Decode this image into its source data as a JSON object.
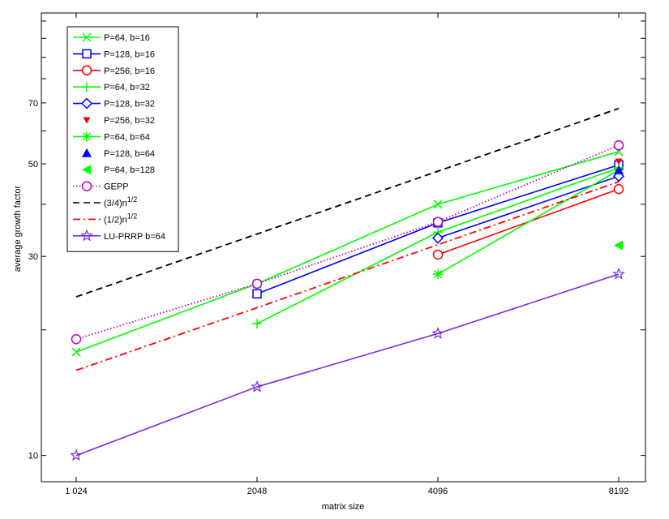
{
  "chart_data": {
    "type": "line",
    "title": "",
    "xlabel": "matrix size",
    "ylabel": "average growth factor",
    "x_scale": "log2",
    "y_scale": "log",
    "xlim": [
      1024,
      8192
    ],
    "ylim": [
      8.65,
      115
    ],
    "x_ticks": [
      1024,
      2048,
      4096,
      8192
    ],
    "x_tick_labels": [
      "1 024",
      "2048",
      "4096",
      "8192"
    ],
    "y_ticks": [
      10,
      30,
      50,
      70
    ],
    "y_tick_labels": [
      "10",
      "30",
      "50",
      "70"
    ],
    "y_minor_ticks": [
      20,
      40,
      60,
      80,
      90,
      100,
      110
    ],
    "grid": false,
    "legend_position": "top-left",
    "series": [
      {
        "name": "P=64, b=16",
        "color": "#00ff00",
        "marker": "x",
        "line": "solid",
        "x": [
          1024,
          2048,
          4096,
          8192
        ],
        "y": [
          17.7,
          25.8,
          40.0,
          53.5
        ]
      },
      {
        "name": "P=128, b=16",
        "color": "#0000ff",
        "marker": "square",
        "line": "solid",
        "x": [
          2048,
          4096,
          8192
        ],
        "y": [
          24.4,
          36.1,
          49.7
        ]
      },
      {
        "name": "P=256, b=16",
        "color": "#ff0000",
        "marker": "circle",
        "line": "solid",
        "x": [
          4096,
          8192
        ],
        "y": [
          30.3,
          43.5
        ]
      },
      {
        "name": "P=64, b=32",
        "color": "#00ff00",
        "marker": "plus",
        "line": "solid",
        "x": [
          2048,
          4096,
          8192
        ],
        "y": [
          20.7,
          34.3,
          48.9
        ]
      },
      {
        "name": "P=128, b=32",
        "color": "#0000ff",
        "marker": "diamond",
        "line": "solid",
        "x": [
          4096,
          8192
        ],
        "y": [
          33.2,
          46.7
        ]
      },
      {
        "name": "P=256, b=32",
        "color": "#ff0000",
        "marker": "triangle-down",
        "line": "none",
        "x": [
          8192
        ],
        "y": [
          50.7
        ]
      },
      {
        "name": "P=64, b=64",
        "color": "#00ff00",
        "marker": "asterisk",
        "line": "solid",
        "x": [
          4096,
          8192
        ],
        "y": [
          27.2,
          48.3
        ]
      },
      {
        "name": "P=128, b=64",
        "color": "#0000ff",
        "marker": "triangle-up",
        "line": "none",
        "x": [
          8192
        ],
        "y": [
          48.3
        ]
      },
      {
        "name": "P=64, b=128",
        "color": "#00ff00",
        "marker": "triangle-left",
        "line": "none",
        "x": [
          8192
        ],
        "y": [
          31.9
        ]
      },
      {
        "name": "GEPP",
        "color": "#c000c0",
        "marker": "circle",
        "line": "dotted",
        "x": [
          1024,
          2048,
          4096,
          8192
        ],
        "y": [
          19.0,
          25.8,
          36.3,
          55.4
        ]
      },
      {
        "name_prefix": "(3/4)n",
        "name_sup": "1/2",
        "color": "#000000",
        "marker": "none",
        "line": "dashed",
        "x": [
          1024,
          8192
        ],
        "y": [
          24.0,
          67.9
        ]
      },
      {
        "name_prefix": "(1/2)n",
        "name_sup": "1/2",
        "color": "#ff0000",
        "marker": "none",
        "line": "dashdot",
        "x": [
          1024,
          2048,
          4096,
          8192
        ],
        "y": [
          16.0,
          22.6,
          32.0,
          45.3
        ]
      },
      {
        "name": "LU-PRRP b=64",
        "color": "#7b2be0",
        "marker": "star",
        "line": "solid",
        "x": [
          1024,
          2048,
          4096,
          8192
        ],
        "y": [
          10.0,
          14.6,
          19.6,
          27.2
        ]
      }
    ]
  }
}
